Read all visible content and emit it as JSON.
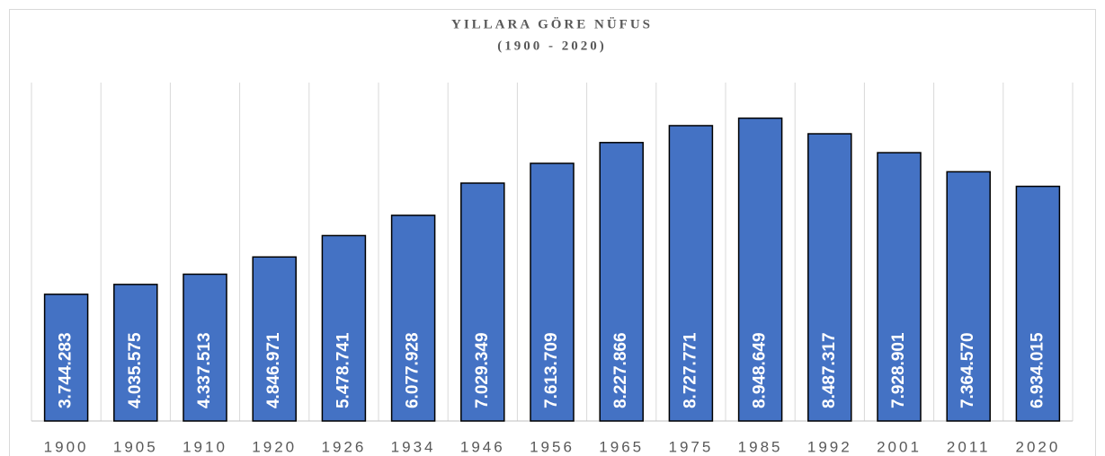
{
  "chart_data": {
    "type": "bar",
    "title": "YILLARA GÖRE NÜFUS",
    "subtitle": "(1900 - 2020)",
    "categories": [
      "1900",
      "1905",
      "1910",
      "1920",
      "1926",
      "1934",
      "1946",
      "1956",
      "1965",
      "1975",
      "1985",
      "1992",
      "2001",
      "2011",
      "2020"
    ],
    "values": [
      3744283,
      4035575,
      4337513,
      4846971,
      5478741,
      6077928,
      7029349,
      7613709,
      8227866,
      8727771,
      8948649,
      8487317,
      7928901,
      7364570,
      6934015
    ],
    "value_labels": [
      "3.744.283",
      "4.035.575",
      "4.337.513",
      "4.846.971",
      "5.478.741",
      "6.077.928",
      "7.029.349",
      "7.613.709",
      "8.227.866",
      "8.727.771",
      "8.948.649",
      "8.487.317",
      "7.928.901",
      "7.364.570",
      "6.934.015"
    ],
    "color": "#4472c4",
    "ylim": [
      0,
      10000000
    ],
    "grid": true
  }
}
